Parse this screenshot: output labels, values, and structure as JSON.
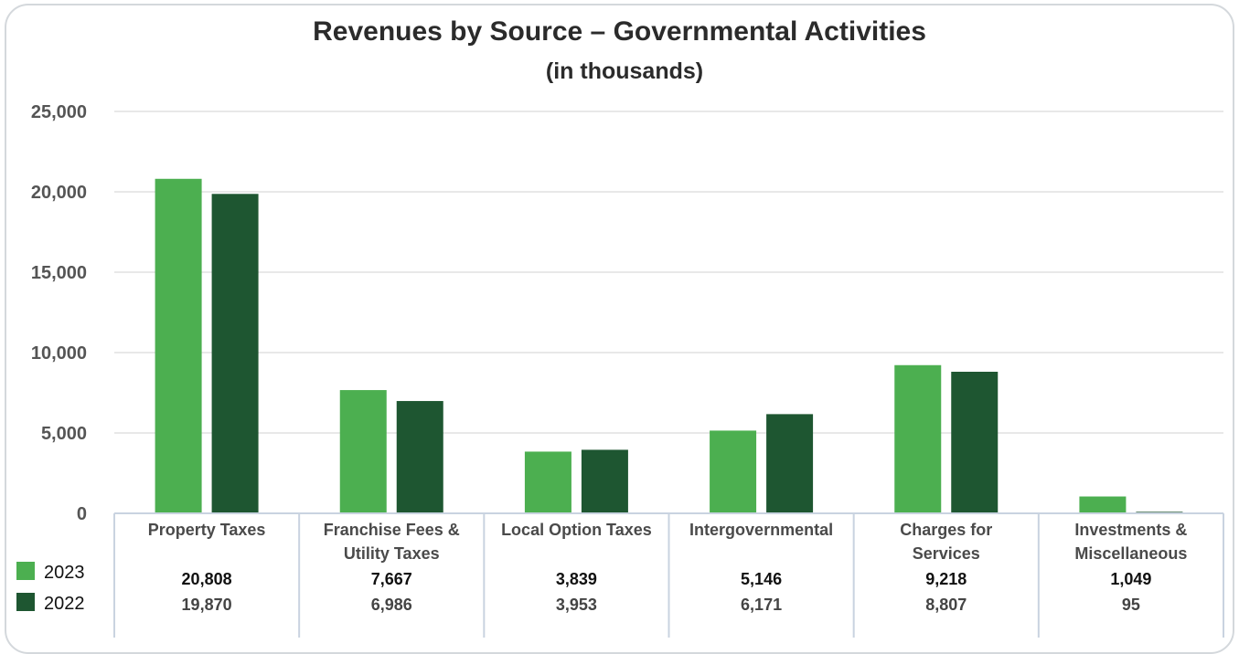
{
  "chart_data": {
    "type": "bar",
    "title": "Revenues by Source – Governmental Activities",
    "subtitle": "(in thousands)",
    "categories": [
      [
        "Property Taxes"
      ],
      [
        "Franchise Fees &",
        "Utility Taxes"
      ],
      [
        "Local Option Taxes"
      ],
      [
        "Intergovernmental"
      ],
      [
        "Charges for",
        "Services"
      ],
      [
        "Investments &",
        "Miscellaneous"
      ]
    ],
    "series": [
      {
        "name": "2023",
        "color": "#4caf50",
        "values": [
          20808,
          7667,
          3839,
          5146,
          9218,
          1049
        ],
        "labels": [
          "20,808",
          "7,667",
          "3,839",
          "5,146",
          "9,218",
          "1,049"
        ]
      },
      {
        "name": "2022",
        "color": "#1e5631",
        "values": [
          19870,
          6986,
          3953,
          6171,
          8807,
          95
        ],
        "labels": [
          "19,870",
          "6,986",
          "3,953",
          "6,171",
          "8,807",
          "95"
        ]
      }
    ],
    "ylim": [
      0,
      25000
    ],
    "yticks": [
      0,
      5000,
      10000,
      15000,
      20000,
      25000
    ],
    "ytick_labels": [
      "0",
      "5,000",
      "10,000",
      "15,000",
      "20,000",
      "25,000"
    ],
    "grid": true,
    "data_table": true
  }
}
